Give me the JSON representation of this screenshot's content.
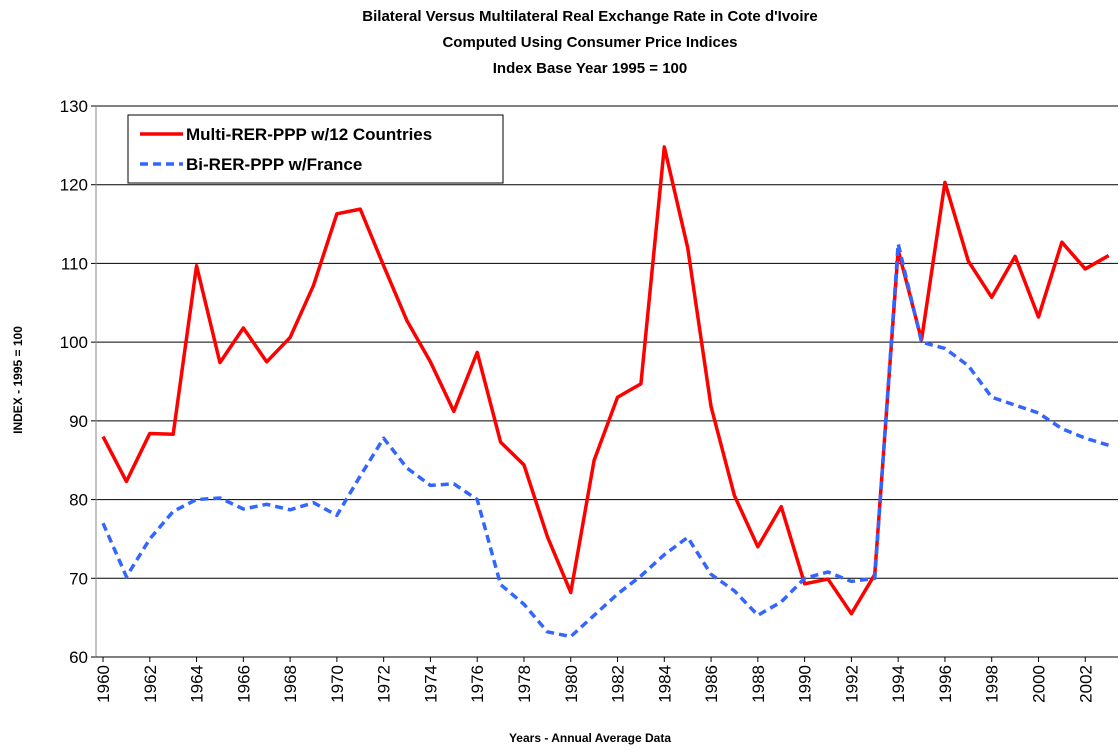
{
  "chart_data": {
    "type": "line",
    "title": "Bilateral Versus Multilateral Real Exchange Rate in Cote d'Ivoire",
    "subtitle": [
      "Computed Using Consumer Price Indices",
      "Index Base Year 1995 = 100"
    ],
    "x_label": "Years - Annual Average Data",
    "y_label": "INDEX  - 1995 = 100",
    "x": [
      1960,
      1961,
      1962,
      1963,
      1964,
      1965,
      1966,
      1967,
      1968,
      1969,
      1970,
      1971,
      1972,
      1973,
      1974,
      1975,
      1976,
      1977,
      1978,
      1979,
      1980,
      1981,
      1982,
      1983,
      1984,
      1985,
      1986,
      1987,
      1988,
      1989,
      1990,
      1991,
      1992,
      1993,
      1994,
      1995,
      1996,
      1997,
      1998,
      1999,
      2000,
      2001,
      2002,
      2003
    ],
    "series": [
      {
        "name": "Multi-RER-PPP w/12 Countries",
        "color": "#ff0000",
        "dash": false,
        "values": [
          88,
          82.3,
          88.4,
          88.3,
          109.7,
          97.4,
          101.8,
          97.5,
          100.6,
          107.2,
          116.3,
          116.9,
          109.7,
          102.7,
          97.5,
          91.2,
          98.7,
          87.3,
          84.4,
          75.3,
          68.2,
          85,
          93,
          94.7,
          124.8,
          112,
          91.8,
          80.5,
          74,
          79.1,
          69.3,
          69.9,
          65.5,
          70.5,
          111.7,
          100.3,
          120.3,
          110.3,
          105.7,
          110.9,
          103.2,
          112.7,
          109.3,
          111
        ]
      },
      {
        "name": "Bi-RER-PPP w/France",
        "color": "#3366ff",
        "dash": true,
        "values": [
          77,
          70.2,
          75,
          78.5,
          80,
          80.2,
          78.8,
          79.4,
          78.7,
          79.6,
          78,
          83,
          87.8,
          84,
          81.8,
          82,
          80,
          69.2,
          66.7,
          63.2,
          62.6,
          65.3,
          68,
          70.3,
          73,
          75.2,
          70.5,
          68.4,
          65.3,
          67,
          70,
          70.8,
          69.6,
          70,
          112.5,
          100,
          99.2,
          97,
          93,
          92,
          91,
          89,
          87.8,
          86.9
        ]
      }
    ],
    "xlim": [
      1959.7,
      2003.4
    ],
    "xticks": [
      1960,
      1962,
      1964,
      1966,
      1968,
      1970,
      1972,
      1974,
      1976,
      1978,
      1980,
      1982,
      1984,
      1986,
      1988,
      1990,
      1992,
      1994,
      1996,
      1998,
      2000,
      2002
    ],
    "ylim": [
      60,
      130
    ],
    "yticks": [
      60,
      70,
      80,
      90,
      100,
      110,
      120,
      130
    ],
    "grid": true,
    "legend": "upper-left"
  }
}
